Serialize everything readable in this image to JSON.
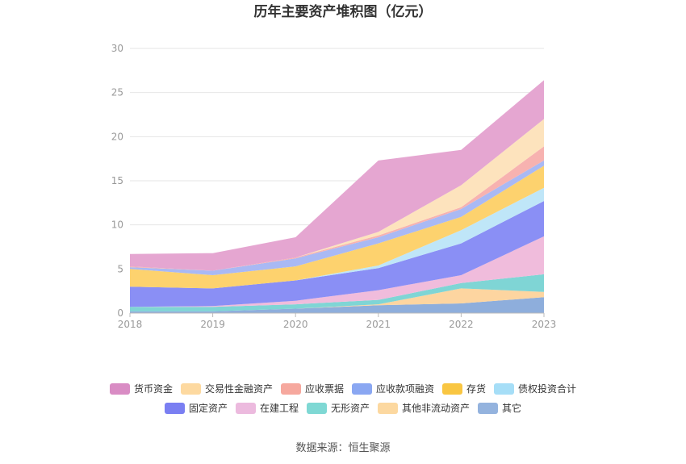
{
  "chart_data": {
    "type": "area",
    "stacked": true,
    "title": "历年主要资产堆积图（亿元）",
    "xlabel": "",
    "ylabel": "",
    "categories": [
      "2018",
      "2019",
      "2020",
      "2021",
      "2022",
      "2023"
    ],
    "ylim": [
      0,
      30
    ],
    "yticks": [
      0,
      5,
      10,
      15,
      20,
      25,
      30
    ],
    "grid": true,
    "legend_position": "bottom",
    "series": [
      {
        "name": "其它",
        "color": "#8eaedc",
        "values": [
          0.2,
          0.2,
          0.5,
          0.9,
          1.1,
          1.8
        ]
      },
      {
        "name": "其他非流动资产",
        "color": "#fdd5a0",
        "values": [
          0.0,
          0.0,
          0.0,
          0.1,
          1.7,
          0.6
        ]
      },
      {
        "name": "无形资产",
        "color": "#7fd5d5",
        "values": [
          0.5,
          0.5,
          0.5,
          0.5,
          0.6,
          2.0
        ]
      },
      {
        "name": "在建工程",
        "color": "#f0bcdc",
        "values": [
          0.0,
          0.1,
          0.4,
          1.1,
          0.9,
          4.3
        ]
      },
      {
        "name": "固定资产",
        "color": "#8a8ff5",
        "values": [
          2.3,
          2.0,
          2.3,
          2.5,
          3.6,
          4.0
        ]
      },
      {
        "name": "债权投资合计",
        "color": "#bfe6f8",
        "values": [
          0.0,
          0.0,
          0.0,
          0.3,
          1.5,
          1.5
        ]
      },
      {
        "name": "存货",
        "color": "#fdd26e",
        "values": [
          2.0,
          1.5,
          1.6,
          2.5,
          1.5,
          2.5
        ]
      },
      {
        "name": "应收款项融资",
        "color": "#a9b9f4",
        "values": [
          0.2,
          0.5,
          0.9,
          0.7,
          0.9,
          0.6
        ]
      },
      {
        "name": "应收票据",
        "color": "#f7b2b0",
        "values": [
          0.1,
          0.0,
          0.1,
          0.2,
          0.2,
          1.6
        ]
      },
      {
        "name": "交易性金融资产",
        "color": "#fde3bd",
        "values": [
          0.0,
          0.0,
          0.0,
          0.4,
          2.5,
          3.1
        ]
      },
      {
        "name": "货币资金",
        "color": "#e5a6d1",
        "values": [
          1.4,
          2.0,
          2.3,
          8.1,
          4.0,
          4.4
        ]
      }
    ]
  },
  "legend": {
    "row1": [
      {
        "name": "货币资金",
        "color": "#d98cc4"
      },
      {
        "name": "交易性金融资产",
        "color": "#fdd9a0"
      },
      {
        "name": "应收票据",
        "color": "#f6a89e"
      },
      {
        "name": "应收款项融资",
        "color": "#8aa7f2"
      },
      {
        "name": "存货",
        "color": "#f9c642"
      },
      {
        "name": "债权投资合计",
        "color": "#a6def7"
      }
    ],
    "row2": [
      {
        "name": "固定资产",
        "color": "#7a7ff2"
      },
      {
        "name": "在建工程",
        "color": "#ecbade"
      },
      {
        "name": "无形资产",
        "color": "#7fd8d4"
      },
      {
        "name": "其他非流动资产",
        "color": "#fcd8a0"
      },
      {
        "name": "其它",
        "color": "#94b3de"
      }
    ]
  },
  "source": "数据来源：恒生聚源"
}
